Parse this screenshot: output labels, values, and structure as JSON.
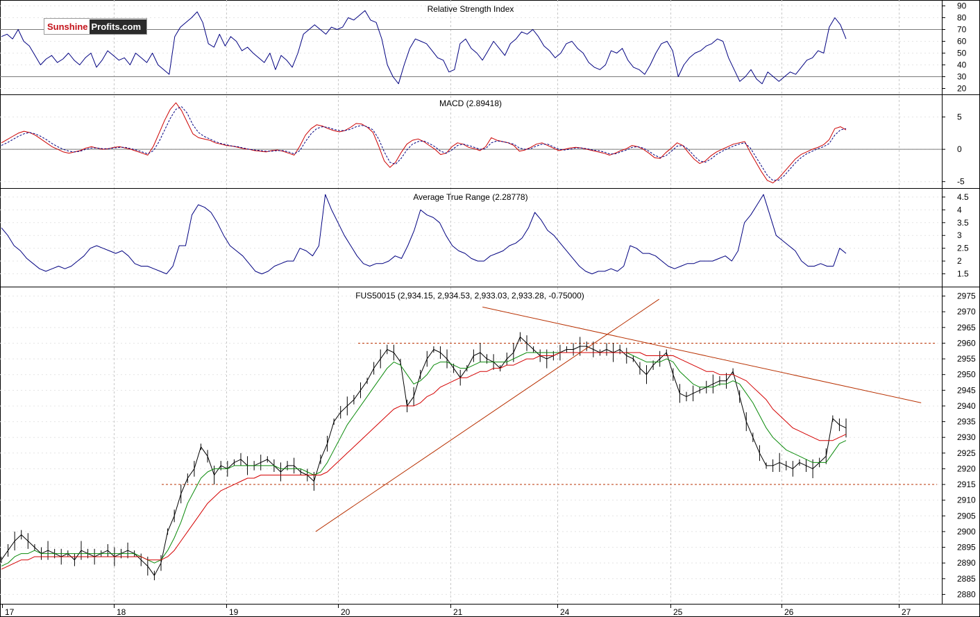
{
  "logo": {
    "part1": "Sunshine",
    "part2": "Profits.com"
  },
  "colors": {
    "price": "#000000",
    "fast_ma": "#0a8a0a",
    "slow_ma": "#d40000",
    "trend": "#b83000",
    "indicator": "#000080",
    "signal": "#000080",
    "grid": "#c8c8c8",
    "axis": "#000000"
  },
  "x_axis": {
    "labels": [
      "17",
      "18",
      "19",
      "20",
      "21",
      "24",
      "25",
      "26",
      "27"
    ]
  },
  "chart_data": [
    {
      "type": "line",
      "title": "Relative Strength Index",
      "y_ticks": [
        90,
        80,
        70,
        60,
        50,
        40,
        30,
        20
      ],
      "ylim": [
        15,
        95
      ],
      "reference_lines": [
        70,
        30
      ],
      "series": [
        {
          "values": [
            64,
            66,
            62,
            70,
            60,
            56,
            48,
            40,
            45,
            48,
            42,
            45,
            50,
            44,
            40,
            46,
            50,
            38,
            44,
            52,
            48,
            44,
            46,
            40,
            50,
            46,
            42,
            50,
            40,
            36,
            32,
            64,
            72,
            76,
            80,
            85,
            76,
            58,
            55,
            66,
            56,
            64,
            60,
            52,
            55,
            50,
            46,
            42,
            50,
            36,
            48,
            44,
            38,
            50,
            66,
            70,
            74,
            70,
            66,
            72,
            70,
            72,
            80,
            78,
            82,
            86,
            78,
            76,
            62,
            40,
            30,
            24,
            40,
            54,
            62,
            60,
            58,
            52,
            46,
            44,
            34,
            36,
            58,
            62,
            54,
            50,
            44,
            52,
            60,
            54,
            48,
            58,
            62,
            68,
            66,
            70,
            64,
            56,
            52,
            46,
            50,
            58,
            60,
            54,
            50,
            42,
            38,
            36,
            40,
            52,
            50,
            54,
            44,
            38,
            36,
            32,
            40,
            50,
            58,
            60,
            52,
            30,
            40,
            46,
            50,
            52,
            56,
            58,
            62,
            60,
            46,
            36,
            26,
            30,
            36,
            28,
            24,
            34,
            30,
            26,
            30,
            34,
            32,
            38,
            44,
            46,
            52,
            50,
            72,
            80,
            74,
            62
          ]
        }
      ]
    },
    {
      "type": "line",
      "title": "MACD (2.89418)",
      "y_ticks": [
        5,
        0,
        -5
      ],
      "ylim": [
        -6,
        8.5
      ],
      "reference_lines": [
        0
      ],
      "series": [
        {
          "values": [
            1.0,
            1.5,
            2.0,
            2.5,
            2.8,
            2.6,
            2.2,
            1.6,
            1.0,
            0.4,
            0.0,
            -0.4,
            -0.6,
            -0.4,
            -0.2,
            0.2,
            0.4,
            0.2,
            0.0,
            0.1,
            0.3,
            0.4,
            0.2,
            0.0,
            -0.3,
            -0.6,
            -0.9,
            0.5,
            2.5,
            4.5,
            6.2,
            7.2,
            6.0,
            4.2,
            2.4,
            1.8,
            1.6,
            1.4,
            1.0,
            0.8,
            0.6,
            0.5,
            0.3,
            0.1,
            0.0,
            -0.2,
            -0.3,
            -0.4,
            -0.2,
            -0.1,
            -0.3,
            -0.6,
            -0.9,
            0.5,
            2.2,
            3.2,
            3.8,
            3.6,
            3.2,
            2.9,
            2.7,
            2.9,
            3.4,
            4.0,
            3.9,
            3.4,
            2.6,
            0.5,
            -1.8,
            -2.8,
            -2.0,
            -0.5,
            0.8,
            1.4,
            1.6,
            1.2,
            0.6,
            0.0,
            -0.8,
            -0.6,
            0.4,
            1.0,
            0.8,
            0.3,
            0.1,
            -0.2,
            0.4,
            1.8,
            1.4,
            1.2,
            1.0,
            0.6,
            -0.3,
            -0.1,
            0.3,
            0.8,
            1.0,
            0.6,
            0.2,
            -0.2,
            0.0,
            0.2,
            0.3,
            0.2,
            0.0,
            -0.2,
            -0.4,
            -0.6,
            -0.9,
            -0.6,
            -0.2,
            0.1,
            0.6,
            0.4,
            0.0,
            -0.6,
            -1.3,
            -1.4,
            -0.5,
            0.2,
            1.0,
            0.6,
            -0.5,
            -1.5,
            -2.2,
            -1.8,
            -1.0,
            -0.4,
            0.0,
            0.4,
            0.8,
            1.0,
            1.2,
            -0.5,
            -2.0,
            -3.5,
            -4.8,
            -5.2,
            -4.5,
            -3.5,
            -2.5,
            -1.5,
            -0.8,
            -0.4,
            0.0,
            0.3,
            0.7,
            1.5,
            3.2,
            3.5,
            3.0
          ]
        },
        {
          "values": [
            0.6,
            1.0,
            1.5,
            2.0,
            2.4,
            2.6,
            2.4,
            2.0,
            1.5,
            0.9,
            0.4,
            0.0,
            -0.3,
            -0.4,
            -0.3,
            0.0,
            0.2,
            0.2,
            0.1,
            0.1,
            0.2,
            0.3,
            0.3,
            0.1,
            -0.1,
            -0.4,
            -0.7,
            -0.2,
            1.2,
            3.0,
            4.8,
            6.2,
            6.6,
            5.6,
            3.8,
            2.6,
            2.0,
            1.6,
            1.2,
            0.9,
            0.7,
            0.5,
            0.4,
            0.2,
            0.0,
            -0.1,
            -0.2,
            -0.3,
            -0.3,
            -0.2,
            -0.2,
            -0.4,
            -0.7,
            -0.2,
            1.2,
            2.4,
            3.2,
            3.5,
            3.4,
            3.1,
            2.9,
            2.9,
            3.1,
            3.5,
            3.7,
            3.5,
            3.0,
            1.6,
            -0.4,
            -2.0,
            -2.3,
            -1.4,
            -0.1,
            0.8,
            1.2,
            1.3,
            0.9,
            0.4,
            -0.3,
            -0.6,
            -0.1,
            0.6,
            0.8,
            0.6,
            0.3,
            0.0,
            0.1,
            1.0,
            1.3,
            1.2,
            1.0,
            0.8,
            0.2,
            0.0,
            0.1,
            0.5,
            0.8,
            0.8,
            0.4,
            0.0,
            -0.1,
            0.0,
            0.2,
            0.2,
            0.1,
            -0.1,
            -0.2,
            -0.4,
            -0.7,
            -0.7,
            -0.4,
            -0.1,
            0.3,
            0.4,
            0.2,
            -0.3,
            -0.9,
            -1.3,
            -1.0,
            -0.3,
            0.5,
            0.6,
            0.0,
            -1.0,
            -1.8,
            -2.0,
            -1.5,
            -0.8,
            -0.3,
            0.1,
            0.5,
            0.8,
            1.0,
            0.2,
            -1.2,
            -2.6,
            -4.0,
            -4.8,
            -4.8,
            -4.1,
            -3.1,
            -2.1,
            -1.3,
            -0.7,
            -0.3,
            0.1,
            0.4,
            0.9,
            2.2,
            3.0,
            3.2
          ]
        }
      ]
    },
    {
      "type": "line",
      "title": "Average True Range (2.28778)",
      "y_ticks": [
        4.5,
        4.0,
        3.5,
        3.0,
        2.5,
        2.0,
        1.5
      ],
      "ylim": [
        1.0,
        4.85
      ],
      "series": [
        {
          "values": [
            3.3,
            3.0,
            2.6,
            2.4,
            2.1,
            1.9,
            1.7,
            1.6,
            1.7,
            1.8,
            1.7,
            1.8,
            2.0,
            2.2,
            2.5,
            2.6,
            2.5,
            2.4,
            2.3,
            2.4,
            2.2,
            1.9,
            1.8,
            1.8,
            1.7,
            1.6,
            1.5,
            1.8,
            2.6,
            2.6,
            3.8,
            4.2,
            4.1,
            3.9,
            3.5,
            3.0,
            2.6,
            2.4,
            2.2,
            1.9,
            1.6,
            1.5,
            1.6,
            1.8,
            1.9,
            2.0,
            2.0,
            2.5,
            2.4,
            2.2,
            2.6,
            4.6,
            4.0,
            3.5,
            3.0,
            2.6,
            2.2,
            1.9,
            1.8,
            1.9,
            1.9,
            2.0,
            2.2,
            2.1,
            2.6,
            3.2,
            4.0,
            3.8,
            3.7,
            3.5,
            3.0,
            2.6,
            2.4,
            2.3,
            2.1,
            2.0,
            2.0,
            2.2,
            2.3,
            2.4,
            2.6,
            2.7,
            2.9,
            3.3,
            3.9,
            3.6,
            3.2,
            3.0,
            2.7,
            2.4,
            2.1,
            1.8,
            1.6,
            1.5,
            1.6,
            1.6,
            1.7,
            1.6,
            1.8,
            2.6,
            2.5,
            2.3,
            2.3,
            2.2,
            2.0,
            1.8,
            1.7,
            1.8,
            1.9,
            1.9,
            2.0,
            2.0,
            2.0,
            2.1,
            2.2,
            2.0,
            2.4,
            3.5,
            3.8,
            4.2,
            4.6,
            3.8,
            3.0,
            2.8,
            2.6,
            2.4,
            2.0,
            1.8,
            1.8,
            1.9,
            1.8,
            1.8,
            2.5,
            2.3
          ]
        }
      ]
    },
    {
      "type": "line",
      "title": "FUS50015 (2,934.15, 2,934.53, 2,933.03, 2,933.28, -0.75000)",
      "y_ticks": [
        2975,
        2970,
        2965,
        2960,
        2955,
        2950,
        2945,
        2940,
        2935,
        2930,
        2925,
        2920,
        2915,
        2910,
        2905,
        2900,
        2895,
        2890,
        2885,
        2880
      ],
      "ylim": [
        2877,
        2978
      ],
      "horizontal_levels": [
        2960,
        2915
      ],
      "series": [
        {
          "values": [
            2891,
            2894,
            2897,
            2899,
            2897,
            2895,
            2893,
            2894,
            2893,
            2892,
            2893,
            2891,
            2894,
            2893,
            2892,
            2893,
            2894,
            2892,
            2893,
            2894,
            2893,
            2891,
            2889,
            2886,
            2890,
            2900,
            2905,
            2912,
            2917,
            2920,
            2927,
            2924,
            2918,
            2921,
            2920,
            2922,
            2923,
            2921,
            2921,
            2922,
            2923,
            2921,
            2919,
            2921,
            2921,
            2919,
            2918,
            2916,
            2923,
            2928,
            2935,
            2938,
            2940,
            2942,
            2945,
            2948,
            2952,
            2955,
            2958,
            2957,
            2954,
            2940,
            2943,
            2950,
            2955,
            2958,
            2957,
            2955,
            2952,
            2949,
            2952,
            2956,
            2957,
            2955,
            2954,
            2952,
            2955,
            2957,
            2962,
            2960,
            2958,
            2956,
            2955,
            2956,
            2957,
            2958,
            2958,
            2959,
            2959,
            2958,
            2957,
            2958,
            2957,
            2958,
            2956,
            2955,
            2952,
            2950,
            2953,
            2955,
            2957,
            2950,
            2944,
            2943,
            2944,
            2945,
            2946,
            2947,
            2948,
            2948,
            2951,
            2943,
            2935,
            2930,
            2925,
            2921,
            2921,
            2922,
            2921,
            2920,
            2922,
            2921,
            2920,
            2922,
            2924,
            2936,
            2934,
            2933
          ]
        },
        {
          "values": [
            2889,
            2890,
            2892,
            2893,
            2893,
            2894,
            2893,
            2893,
            2893,
            2893,
            2893,
            2893,
            2893,
            2893,
            2893,
            2893,
            2893,
            2893,
            2893,
            2893,
            2893,
            2892,
            2891,
            2890,
            2891,
            2894,
            2898,
            2903,
            2909,
            2913,
            2917,
            2919,
            2920,
            2920,
            2920,
            2921,
            2921,
            2921,
            2921,
            2921,
            2921,
            2921,
            2920,
            2920,
            2920,
            2920,
            2919,
            2918,
            2919,
            2922,
            2926,
            2930,
            2934,
            2937,
            2940,
            2943,
            2946,
            2949,
            2952,
            2954,
            2953,
            2950,
            2947,
            2948,
            2950,
            2953,
            2954,
            2954,
            2953,
            2952,
            2952,
            2953,
            2954,
            2954,
            2954,
            2954,
            2954,
            2955,
            2956,
            2957,
            2957,
            2957,
            2957,
            2957,
            2957,
            2957,
            2957,
            2957,
            2957,
            2957,
            2957,
            2957,
            2957,
            2957,
            2957,
            2956,
            2955,
            2954,
            2954,
            2954,
            2955,
            2954,
            2951,
            2949,
            2947,
            2946,
            2946,
            2946,
            2947,
            2947,
            2948,
            2947,
            2944,
            2941,
            2937,
            2933,
            2930,
            2928,
            2926,
            2925,
            2924,
            2923,
            2922,
            2922,
            2922,
            2925,
            2928,
            2929
          ]
        },
        {
          "values": [
            2888,
            2889,
            2890,
            2891,
            2891,
            2892,
            2892,
            2892,
            2892,
            2892,
            2892,
            2892,
            2892,
            2892,
            2892,
            2892,
            2892,
            2892,
            2892,
            2892,
            2892,
            2892,
            2891,
            2891,
            2891,
            2892,
            2894,
            2897,
            2900,
            2903,
            2906,
            2909,
            2911,
            2913,
            2914,
            2915,
            2916,
            2917,
            2917,
            2918,
            2918,
            2918,
            2918,
            2918,
            2918,
            2918,
            2918,
            2918,
            2918,
            2919,
            2921,
            2923,
            2925,
            2927,
            2929,
            2931,
            2933,
            2935,
            2937,
            2939,
            2940,
            2940,
            2940,
            2941,
            2943,
            2944,
            2946,
            2947,
            2948,
            2949,
            2949,
            2950,
            2951,
            2951,
            2952,
            2952,
            2953,
            2953,
            2954,
            2955,
            2955,
            2956,
            2956,
            2956,
            2957,
            2957,
            2957,
            2957,
            2957,
            2957,
            2957,
            2957,
            2957,
            2957,
            2957,
            2957,
            2957,
            2956,
            2956,
            2956,
            2956,
            2956,
            2955,
            2954,
            2953,
            2952,
            2951,
            2951,
            2950,
            2950,
            2950,
            2949,
            2948,
            2946,
            2944,
            2942,
            2939,
            2937,
            2935,
            2933,
            2932,
            2931,
            2930,
            2929,
            2929,
            2929,
            2930,
            2931
          ]
        }
      ],
      "trend_lines": [
        {
          "from": {
            "x": 2.8,
            "y": 2900
          },
          "to": {
            "x": 5.9,
            "y": 2974
          }
        },
        {
          "from": {
            "x": 4.3,
            "y": 2971.5
          },
          "to": {
            "x": 8.2,
            "y": 2941
          }
        }
      ]
    }
  ]
}
